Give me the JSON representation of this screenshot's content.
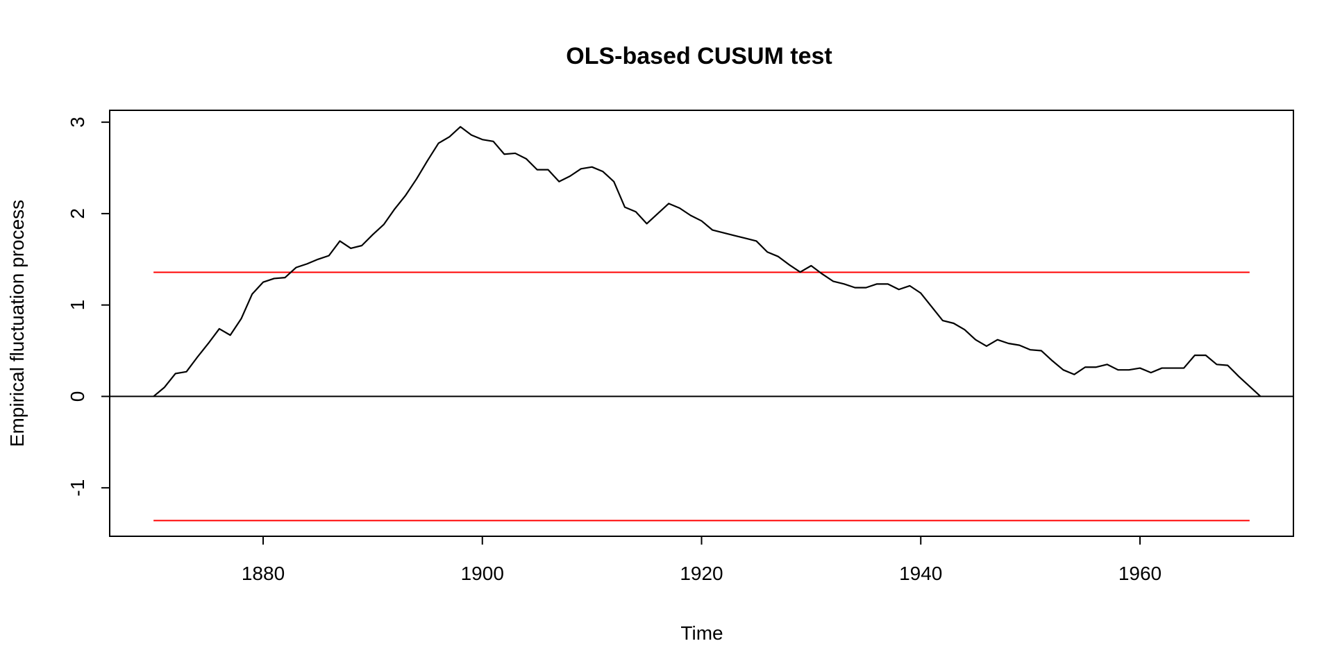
{
  "chart_data": {
    "type": "line",
    "title": "OLS-based CUSUM test",
    "xlabel": "Time",
    "ylabel": "Empirical fluctuation process",
    "xlim": [
      1866,
      1974
    ],
    "ylim": [
      -1.53,
      3.13
    ],
    "xticks": [
      1880,
      1900,
      1920,
      1940,
      1960
    ],
    "yticks": [
      -1,
      0,
      1,
      2,
      3
    ],
    "grid": false,
    "legend": "none",
    "x_start": 1870,
    "x_step": 1,
    "series": [
      {
        "color": "#000000",
        "values": [
          0.0,
          0.1,
          0.25,
          0.27,
          0.43,
          0.58,
          0.74,
          0.67,
          0.85,
          1.12,
          1.25,
          1.29,
          1.3,
          1.41,
          1.45,
          1.5,
          1.54,
          1.7,
          1.62,
          1.65,
          1.77,
          1.88,
          2.05,
          2.2,
          2.38,
          2.58,
          2.77,
          2.84,
          2.95,
          2.86,
          2.81,
          2.79,
          2.65,
          2.66,
          2.6,
          2.48,
          2.48,
          2.35,
          2.41,
          2.49,
          2.51,
          2.46,
          2.35,
          2.07,
          2.02,
          1.89,
          2.0,
          2.11,
          2.06,
          1.98,
          1.92,
          1.82,
          1.79,
          1.76,
          1.73,
          1.7,
          1.58,
          1.53,
          1.44,
          1.36,
          1.43,
          1.34,
          1.26,
          1.23,
          1.19,
          1.19,
          1.23,
          1.23,
          1.17,
          1.21,
          1.13,
          0.98,
          0.83,
          0.8,
          0.73,
          0.62,
          0.55,
          0.62,
          0.58,
          0.56,
          0.51,
          0.5,
          0.39,
          0.29,
          0.24,
          0.32,
          0.32,
          0.35,
          0.29,
          0.29,
          0.31,
          0.26,
          0.31,
          0.31,
          0.31,
          0.45,
          0.45,
          0.35,
          0.34,
          0.22,
          0.11,
          0.0
        ]
      }
    ],
    "boundaries": {
      "color": "#ff0000",
      "upper": 1.358,
      "lower": -1.358,
      "x_range": [
        1870,
        1970
      ]
    },
    "reference_line": {
      "value": 0,
      "color": "#000000"
    }
  }
}
